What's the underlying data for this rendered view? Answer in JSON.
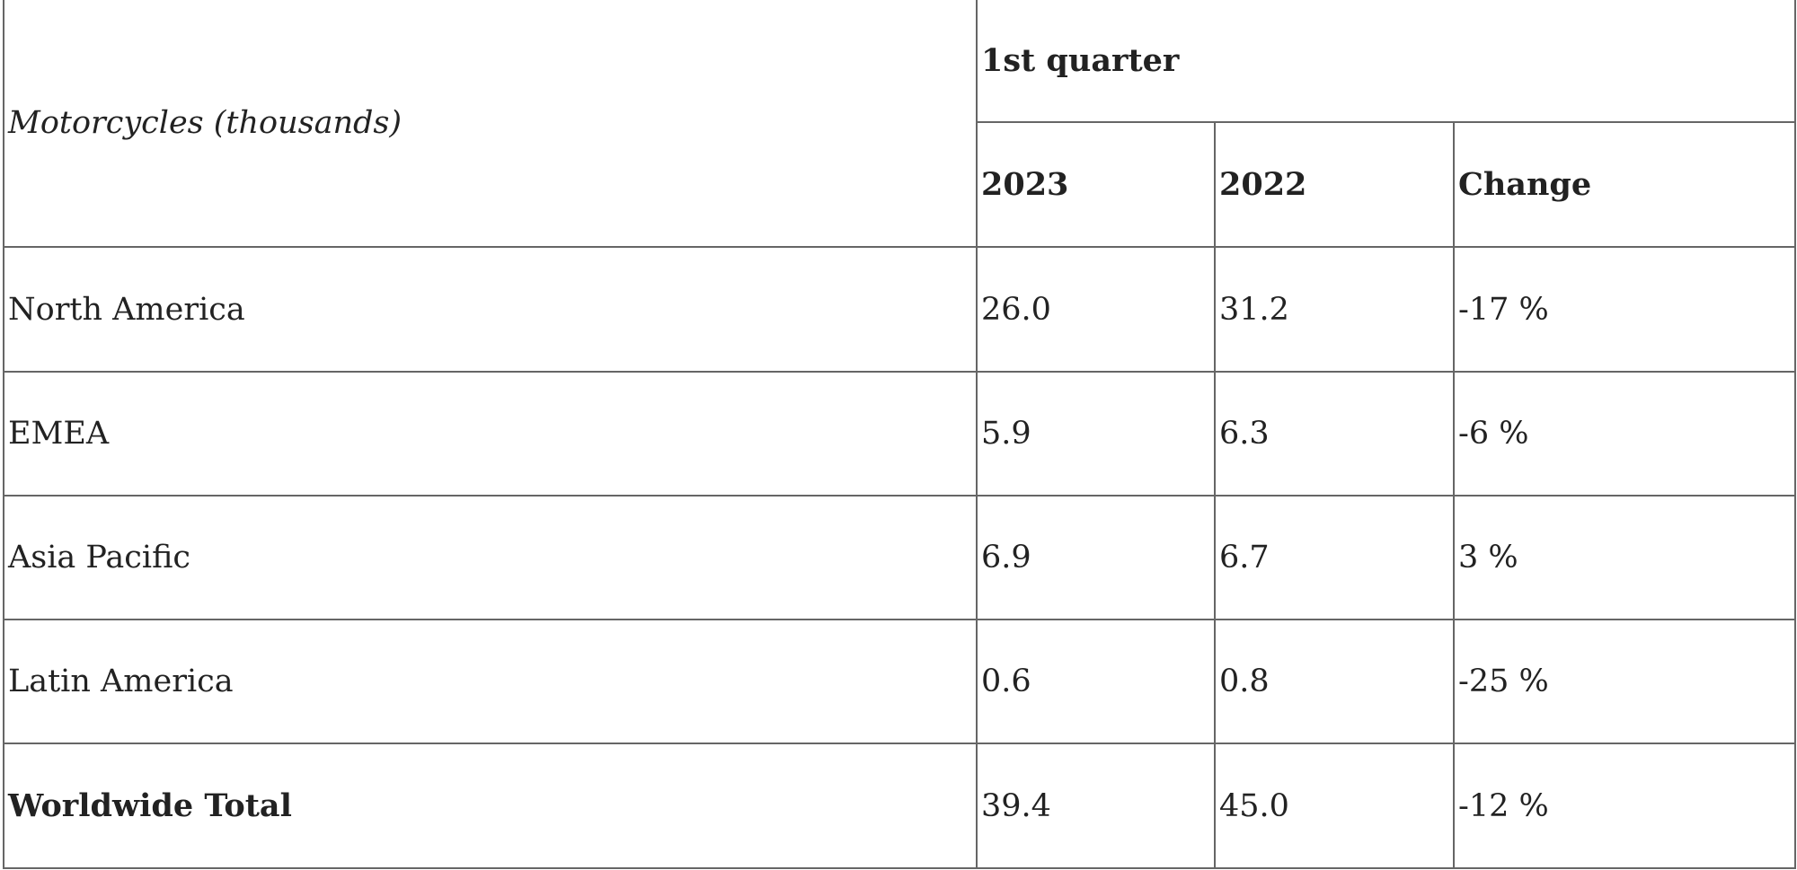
{
  "table": {
    "header": {
      "label": "Motorcycles (thousands)",
      "group": "1st quarter",
      "columns": [
        "2023",
        "2022",
        "Change"
      ]
    },
    "rows": [
      [
        "North America",
        "26.0",
        "31.2",
        "-17 %"
      ],
      [
        "EMEA",
        "5.9",
        "6.3",
        "-6 %"
      ],
      [
        "Asia Pacific",
        "6.9",
        "6.7",
        "3 %"
      ],
      [
        "Latin America",
        "0.6",
        "0.8",
        "-25 %"
      ],
      [
        "Worldwide Total",
        "39.4",
        "45.0",
        "-12 %"
      ]
    ]
  }
}
